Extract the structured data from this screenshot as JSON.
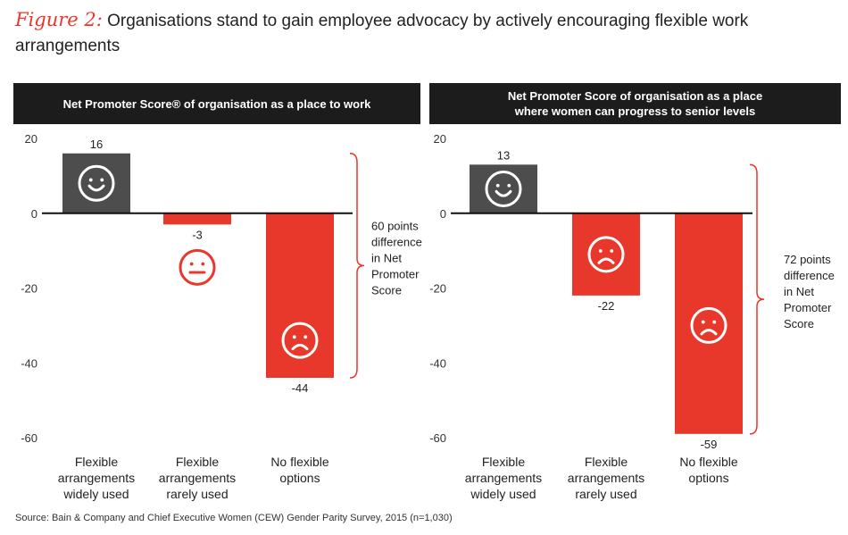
{
  "title": {
    "prefix": "Figure 2:",
    "text": "Organisations stand to gain employee advocacy by actively encouraging flexible work arrangements"
  },
  "source": "Source: Bain & Company and Chief Executive Women (CEW) Gender Parity Survey, 2015 (n=1,030)",
  "colors": {
    "positive": "#4d4d4d",
    "negative": "#e8372b",
    "header_bg": "#1c1c1c",
    "brace": "#e8372b"
  },
  "chart_data": [
    {
      "type": "bar",
      "title_lines": [
        "Net Promoter Score® of organisation as a place to work"
      ],
      "categories": [
        [
          "Flexible",
          "arrangements",
          "widely used"
        ],
        [
          "Flexible",
          "arrangements",
          "rarely used"
        ],
        [
          "No flexible",
          "options"
        ]
      ],
      "values": [
        16,
        -3,
        -44
      ],
      "value_labels": [
        "16",
        "-3",
        "-44"
      ],
      "faces": [
        "smile-icon",
        "neutral-icon",
        "frown-icon"
      ],
      "y_ticks": [
        20,
        0,
        -20,
        -40,
        -60
      ],
      "ylim": [
        -60,
        20
      ],
      "annotation": [
        "60 points",
        "difference",
        "in Net",
        "Promoter",
        "Score"
      ]
    },
    {
      "type": "bar",
      "title_lines": [
        "Net Promoter Score of organisation as a place",
        "where women can progress to senior levels"
      ],
      "categories": [
        [
          "Flexible",
          "arrangements",
          "widely used"
        ],
        [
          "Flexible",
          "arrangements",
          "rarely used"
        ],
        [
          "No flexible",
          "options"
        ]
      ],
      "values": [
        13,
        -22,
        -59
      ],
      "value_labels": [
        "13",
        "-22",
        "-59"
      ],
      "faces": [
        "smile-icon",
        "frown-icon",
        "frown-icon"
      ],
      "y_ticks": [
        20,
        0,
        -20,
        -40,
        -60
      ],
      "ylim": [
        -60,
        20
      ],
      "annotation": [
        "72 points",
        "difference",
        "in Net",
        "Promoter",
        "Score"
      ]
    }
  ]
}
